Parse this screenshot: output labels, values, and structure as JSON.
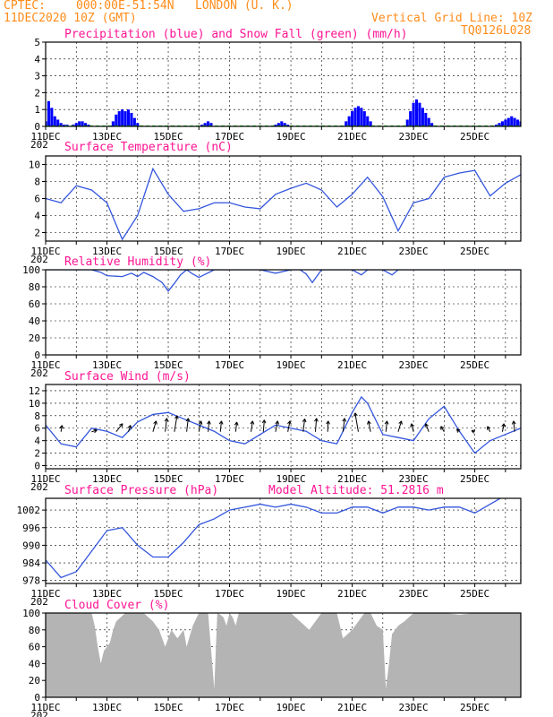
{
  "header": {
    "source": "CPTEC:",
    "location": "000:00E-51:54N   LONDON (U. K.)",
    "datetime": "11DEC2020 10Z (GMT)",
    "grid_note": "Vertical Grid Line: 10Z",
    "code": "TQ0126L028"
  },
  "colors": {
    "header": "#ff8c1a",
    "panel_title": "#ff1493",
    "precip": "#0000ff",
    "snow": "#00cc00",
    "line": "#3355dd",
    "wind_vector": "#000000",
    "cloud": "#b4b4b4",
    "grid": "#000000"
  },
  "date_labels": [
    "11DEC",
    "13DEC",
    "15DEC",
    "17DEC",
    "19DEC",
    "21DEC",
    "23DEC",
    "25DEC"
  ],
  "date_label_values": [
    0,
    2,
    4,
    6,
    8,
    10,
    12,
    14
  ],
  "year_fragment": "202",
  "chart_data": [
    {
      "id": "precip",
      "type": "bar",
      "title": "Precipitation (blue) and Snow Fall (green) (mm/h)",
      "yticks": [
        "0",
        "1",
        "2",
        "3",
        "4",
        "5"
      ],
      "ylim": [
        0,
        5
      ],
      "xlim": [
        0,
        15.5
      ],
      "grid": "dashed",
      "series": [
        {
          "name": "Precipitation",
          "color": "#0000ff",
          "x": [
            0.0,
            0.1,
            0.2,
            0.3,
            0.4,
            0.5,
            0.6,
            0.7,
            0.8,
            0.9,
            1.0,
            1.1,
            1.2,
            1.3,
            1.4,
            2.2,
            2.3,
            2.4,
            2.5,
            2.6,
            2.7,
            2.8,
            2.9,
            3.0,
            5.1,
            5.2,
            5.3,
            5.4,
            7.5,
            7.6,
            7.7,
            7.8,
            7.9,
            9.8,
            9.9,
            10.0,
            10.1,
            10.2,
            10.3,
            10.4,
            10.5,
            10.6,
            11.8,
            11.9,
            12.0,
            12.1,
            12.2,
            12.3,
            12.4,
            12.5,
            12.6,
            14.7,
            14.8,
            14.9,
            15.0,
            15.1,
            15.2,
            15.3,
            15.4,
            15.5
          ],
          "values": [
            0.3,
            1.5,
            1.1,
            0.6,
            0.4,
            0.2,
            0.1,
            0.1,
            0.0,
            0.1,
            0.2,
            0.3,
            0.3,
            0.2,
            0.1,
            0.3,
            0.7,
            0.9,
            1.0,
            0.9,
            1.0,
            0.8,
            0.5,
            0.2,
            0.1,
            0.2,
            0.3,
            0.2,
            0.1,
            0.2,
            0.3,
            0.2,
            0.1,
            0.3,
            0.6,
            0.9,
            1.1,
            1.2,
            1.1,
            0.9,
            0.6,
            0.3,
            0.4,
            0.9,
            1.4,
            1.6,
            1.4,
            1.1,
            0.8,
            0.5,
            0.2,
            0.1,
            0.2,
            0.3,
            0.4,
            0.5,
            0.6,
            0.5,
            0.4,
            0.3
          ]
        },
        {
          "name": "Snow Fall",
          "color": "#00cc00",
          "x": [
            0.0,
            15.5
          ],
          "values": [
            0,
            0
          ]
        }
      ]
    },
    {
      "id": "temp",
      "type": "line",
      "title": "Surface Temperature (nC)",
      "yticks": [
        "2",
        "4",
        "6",
        "8",
        "10"
      ],
      "ylim": [
        1,
        11
      ],
      "xlim": [
        0,
        15.5
      ],
      "x": [
        0.0,
        0.5,
        1.0,
        1.5,
        2.0,
        2.5,
        3.0,
        3.5,
        4.0,
        4.5,
        5.0,
        5.5,
        6.0,
        6.5,
        7.0,
        7.5,
        8.0,
        8.5,
        9.0,
        9.5,
        10.0,
        10.5,
        11.0,
        11.5,
        12.0,
        12.5,
        13.0,
        13.5,
        14.0,
        14.5,
        15.0,
        15.5
      ],
      "values": [
        6.0,
        5.5,
        7.5,
        7.0,
        5.5,
        1.2,
        4.0,
        9.5,
        6.5,
        4.5,
        4.8,
        5.5,
        5.5,
        5.0,
        4.8,
        6.5,
        7.2,
        7.8,
        7.0,
        5.0,
        6.5,
        8.5,
        6.2,
        2.2,
        5.5,
        6.0,
        8.5,
        9.0,
        9.3,
        6.3,
        7.8,
        8.8
      ]
    },
    {
      "id": "rh",
      "type": "line",
      "title": "Relative Humidity (%)",
      "yticks": [
        "0",
        "20",
        "40",
        "60",
        "80",
        "100"
      ],
      "ylim": [
        0,
        100
      ],
      "xlim": [
        0,
        15.5
      ],
      "x": [
        0.0,
        1.5,
        1.8,
        2.0,
        2.5,
        2.8,
        3.0,
        3.2,
        3.5,
        3.8,
        4.0,
        4.2,
        4.4,
        4.6,
        4.8,
        5.0,
        5.5,
        5.8,
        6.0,
        6.5,
        7.0,
        7.5,
        8.0,
        8.3,
        8.5,
        8.7,
        9.0,
        9.5,
        10.0,
        10.3,
        10.5,
        11.0,
        11.3,
        11.5,
        12.0,
        12.5,
        13.0,
        13.5,
        14.0,
        14.5,
        15.0,
        15.5
      ],
      "values": [
        100,
        100,
        97,
        93,
        92,
        96,
        92,
        97,
        92,
        85,
        75,
        84,
        94,
        100,
        95,
        91,
        100,
        100,
        100,
        100,
        100,
        96,
        100,
        100,
        95,
        85,
        100,
        100,
        100,
        94,
        100,
        100,
        94,
        100,
        100,
        100,
        100,
        100,
        100,
        100,
        100,
        100
      ]
    },
    {
      "id": "wind",
      "type": "line",
      "title": "Surface Wind (m/s)",
      "yticks": [
        "0",
        "2",
        "4",
        "6",
        "8",
        "10",
        "12"
      ],
      "ylim": [
        -0.5,
        13
      ],
      "xlim": [
        0,
        15.5
      ],
      "x": [
        0.0,
        0.5,
        1.0,
        1.5,
        2.0,
        2.5,
        3.0,
        3.5,
        4.0,
        4.5,
        5.0,
        5.5,
        6.0,
        6.5,
        7.0,
        7.5,
        8.0,
        8.5,
        9.0,
        9.5,
        10.0,
        10.3,
        10.5,
        11.0,
        11.5,
        12.0,
        12.5,
        13.0,
        13.5,
        14.0,
        14.5,
        15.0,
        15.5
      ],
      "values": [
        6.5,
        3.5,
        3.0,
        6.0,
        5.5,
        4.5,
        7.0,
        8.2,
        8.5,
        7.5,
        6.5,
        5.5,
        4.0,
        3.5,
        5.0,
        6.5,
        6.0,
        5.5,
        4.0,
        3.5,
        8.5,
        11.0,
        10.0,
        5.0,
        4.5,
        4.0,
        7.5,
        9.5,
        5.5,
        2.0,
        4.0,
        5.0,
        6.0
      ],
      "vectors": {
        "x": [
          0.5,
          1.5,
          2.3,
          2.7,
          3.5,
          3.9,
          4.2,
          4.6,
          5.0,
          5.3,
          5.7,
          6.2,
          6.7,
          7.1,
          7.5,
          7.9,
          8.4,
          8.8,
          9.2,
          9.7,
          10.2,
          10.6,
          11.1,
          11.5,
          12.0,
          12.5,
          13.0,
          13.5,
          14.0,
          14.5,
          14.9,
          15.3
        ],
        "u": [
          0.2,
          1.0,
          1.2,
          0.4,
          0.6,
          0.3,
          0.5,
          0.3,
          0.4,
          0.2,
          0.2,
          0.2,
          0.3,
          0.2,
          0.4,
          0.4,
          0.3,
          0.2,
          0.1,
          0.3,
          -0.6,
          -0.4,
          0.2,
          0.6,
          -0.4,
          -0.6,
          -0.6,
          -0.5,
          -0.6,
          -0.5,
          0.3,
          -0.2
        ],
        "v": [
          1.2,
          0.3,
          1.5,
          1.2,
          2.0,
          2.5,
          3.0,
          2.5,
          2.0,
          2.0,
          2.0,
          1.8,
          2.0,
          2.2,
          2.0,
          2.0,
          2.4,
          2.5,
          2.0,
          2.5,
          3.5,
          2.0,
          2.0,
          2.0,
          1.5,
          1.5,
          1.0,
          0.5,
          0.2,
          1.0,
          1.5,
          2.0
        ]
      }
    },
    {
      "id": "pressure",
      "type": "line",
      "title": "Surface Pressure (hPa)",
      "subtitle": "Model Altitude: 51.2816 m",
      "yticks": [
        "978",
        "984",
        "990",
        "996",
        "1002"
      ],
      "ylim": [
        977,
        1006
      ],
      "xlim": [
        0,
        15.5
      ],
      "x": [
        0.0,
        0.5,
        1.0,
        1.5,
        2.0,
        2.5,
        3.0,
        3.5,
        4.0,
        4.5,
        5.0,
        5.5,
        6.0,
        6.5,
        7.0,
        7.5,
        8.0,
        8.5,
        9.0,
        9.5,
        10.0,
        10.5,
        11.0,
        11.5,
        12.0,
        12.5,
        13.0,
        13.5,
        14.0,
        14.5,
        15.0,
        15.5
      ],
      "values": [
        985,
        979,
        981,
        988,
        995,
        996,
        990,
        986,
        986,
        991,
        997,
        999,
        1002,
        1003,
        1004,
        1003,
        1004,
        1003,
        1001,
        1001,
        1003,
        1003,
        1001,
        1003,
        1003,
        1002,
        1003,
        1003,
        1001,
        1004,
        1007,
        1008
      ]
    },
    {
      "id": "cloud",
      "type": "area",
      "title": "Cloud Cover (%)",
      "yticks": [
        "0",
        "20",
        "40",
        "60",
        "80",
        "100"
      ],
      "ylim": [
        0,
        100
      ],
      "xlim": [
        0,
        15.5
      ],
      "x": [
        0.0,
        1.5,
        1.6,
        1.7,
        1.8,
        1.9,
        2.0,
        2.1,
        2.2,
        2.3,
        2.6,
        3.1,
        3.2,
        3.5,
        3.7,
        3.9,
        4.1,
        4.3,
        4.5,
        4.6,
        4.8,
        5.0,
        5.1,
        5.2,
        5.3,
        5.5,
        5.6,
        5.7,
        5.8,
        5.9,
        6.0,
        6.1,
        6.2,
        6.3,
        6.5,
        6.8,
        7.0,
        7.5,
        8.0,
        8.3,
        8.6,
        8.8,
        9.0,
        9.2,
        9.5,
        9.7,
        10.0,
        10.4,
        10.6,
        10.8,
        11.0,
        11.1,
        11.2,
        11.3,
        11.5,
        11.7,
        12.0,
        12.5,
        13.0,
        13.5,
        14.0,
        14.5,
        15.0,
        15.5
      ],
      "values": [
        100,
        100,
        85,
        60,
        40,
        55,
        60,
        65,
        80,
        90,
        100,
        100,
        100,
        90,
        80,
        60,
        80,
        70,
        80,
        60,
        85,
        100,
        100,
        100,
        100,
        10,
        100,
        98,
        95,
        85,
        100,
        95,
        85,
        100,
        100,
        100,
        100,
        100,
        100,
        90,
        80,
        90,
        100,
        100,
        100,
        70,
        80,
        100,
        100,
        85,
        80,
        10,
        40,
        75,
        85,
        90,
        100,
        100,
        100,
        98,
        100,
        100,
        100,
        100
      ]
    }
  ]
}
